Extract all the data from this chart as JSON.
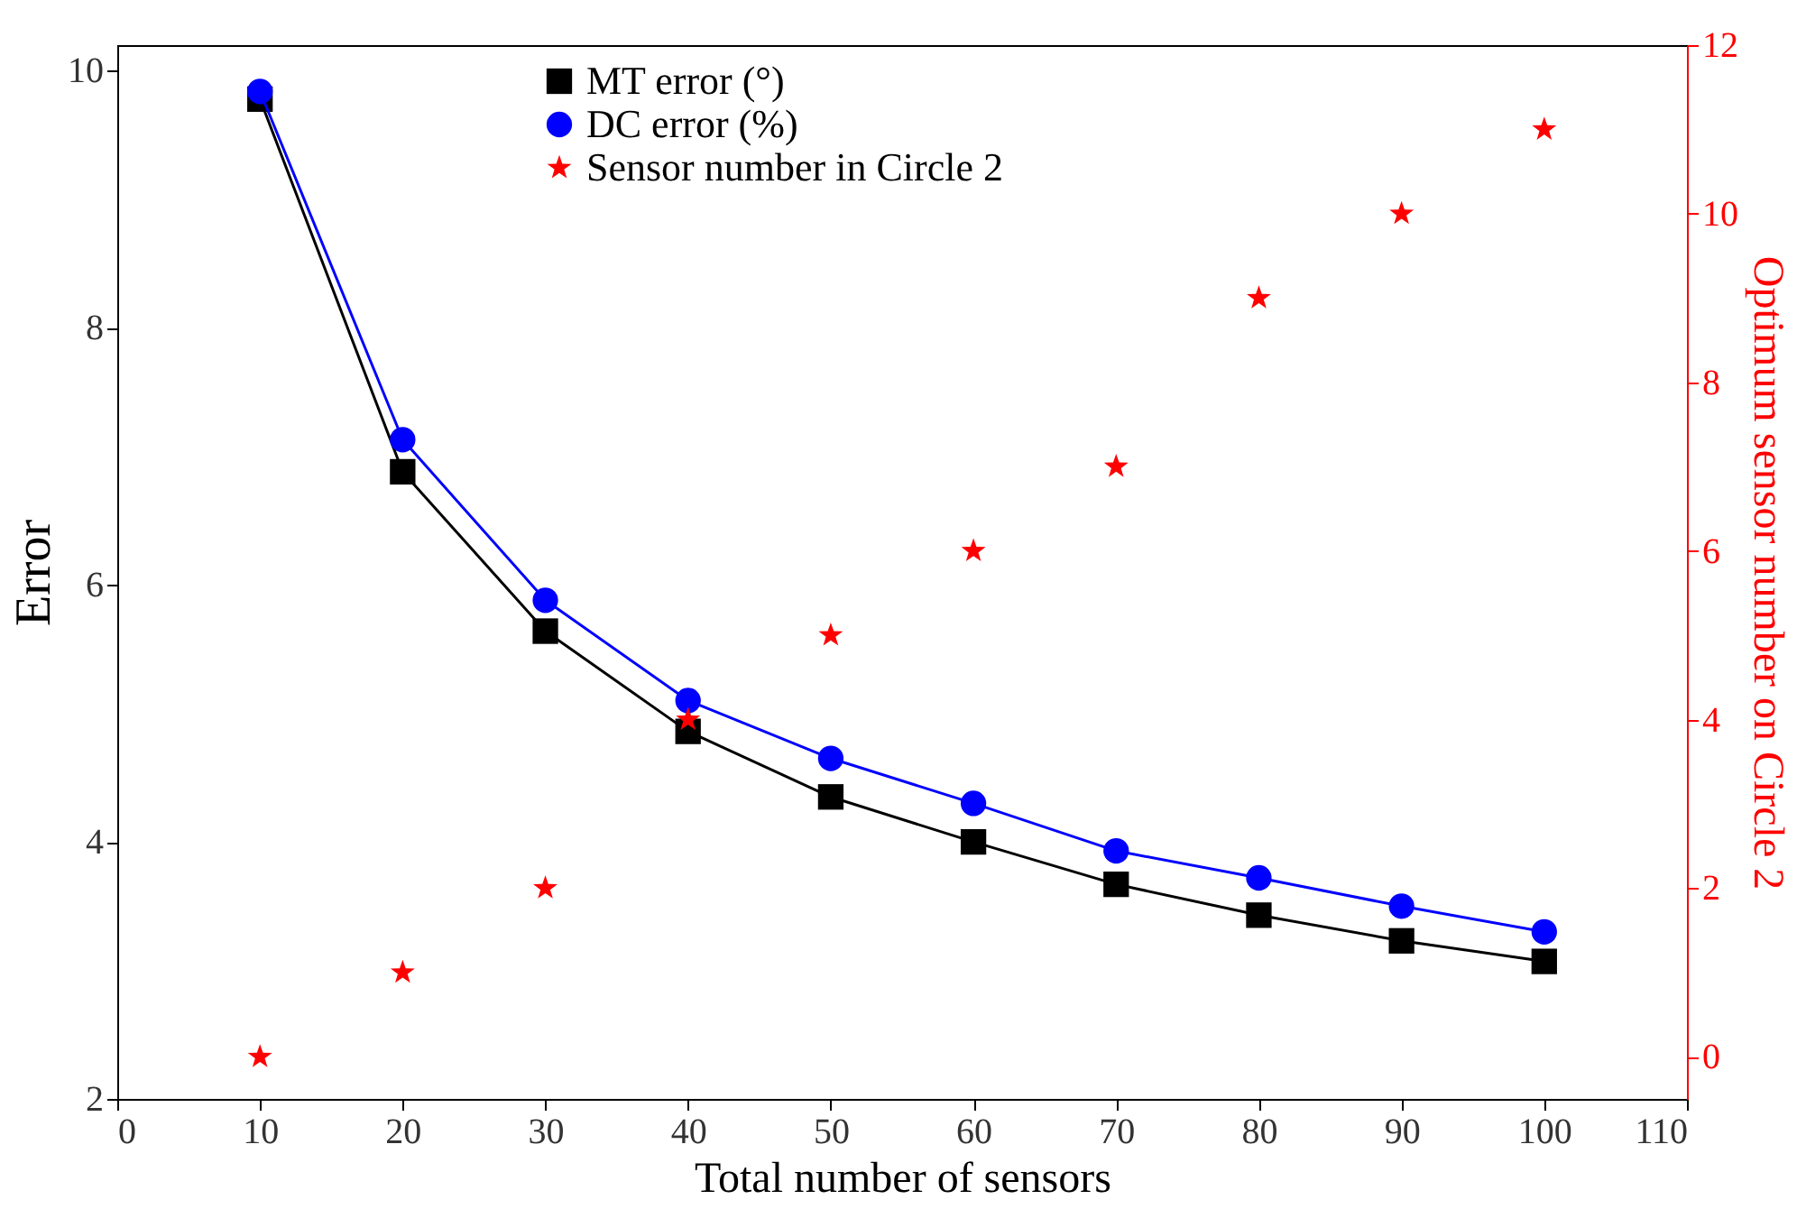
{
  "chart_data": {
    "type": "line",
    "xlabel": "Total number of sensors",
    "ylabel": "Error",
    "y2label": "Optimum sensor number on Circle 2",
    "x": [
      10,
      20,
      30,
      40,
      50,
      60,
      70,
      80,
      90,
      100
    ],
    "series": [
      {
        "name": "MT error (°)",
        "color": "#000000",
        "marker": "square",
        "values": [
          9.78,
          6.88,
          5.64,
          4.86,
          4.35,
          4.0,
          3.67,
          3.43,
          3.23,
          3.07
        ]
      },
      {
        "name": "DC error (%)",
        "color": "#0000ff",
        "marker": "circle",
        "values": [
          9.84,
          7.13,
          5.88,
          5.1,
          4.65,
          4.3,
          3.93,
          3.72,
          3.5,
          3.3
        ]
      },
      {
        "name": "Sensor number in Circle 2",
        "type": "scatter",
        "axis": "y2",
        "color": "#ff0000",
        "marker": "star",
        "values": [
          0,
          1,
          2,
          4,
          5,
          6,
          7,
          9,
          10,
          11
        ]
      }
    ],
    "xlim": [
      0,
      110
    ],
    "xticks": [
      0,
      10,
      20,
      30,
      40,
      50,
      60,
      70,
      80,
      90,
      100,
      110
    ],
    "ylim": [
      2,
      10.2
    ],
    "yticks": [
      2,
      4,
      6,
      8,
      10
    ],
    "y2lim": [
      -0.5,
      12
    ],
    "y2ticks": [
      0,
      2,
      4,
      6,
      8,
      10,
      12
    ],
    "legend": "top left",
    "grid": false
  }
}
